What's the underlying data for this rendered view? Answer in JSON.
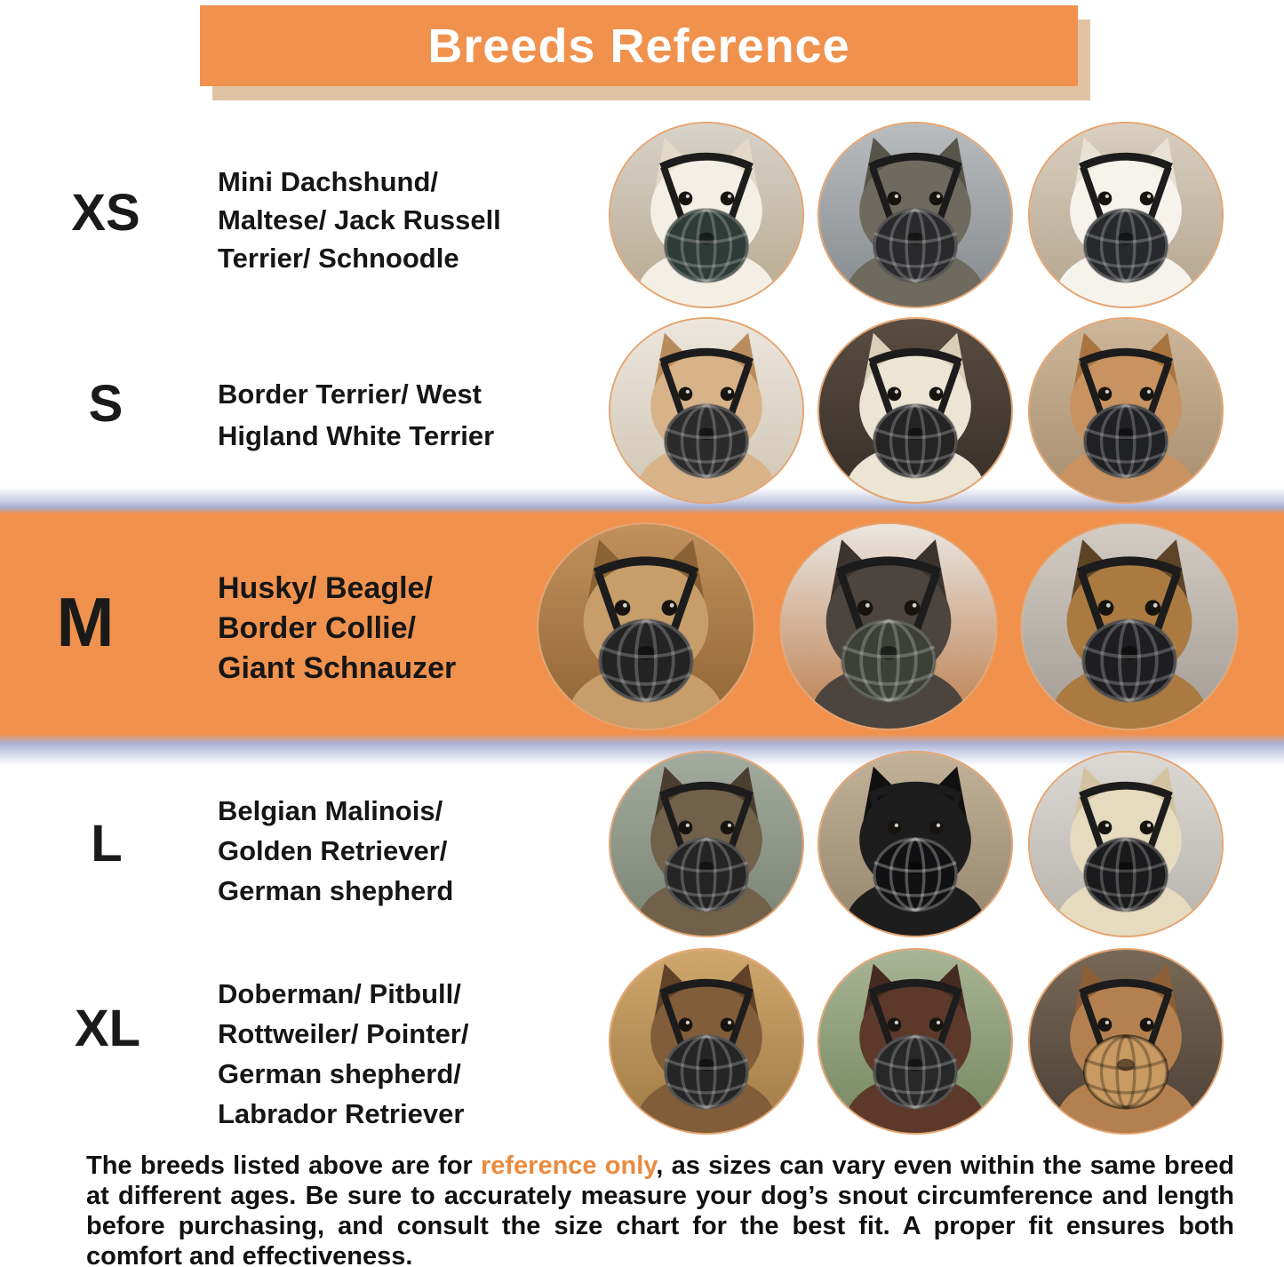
{
  "title": {
    "text": "Breeds Reference",
    "banner_color": "#f0924e",
    "shadow_color": "#dfc3a3",
    "text_color": "#ffffff"
  },
  "highlight": {
    "band_color": "#f0924e",
    "edge_color": "#a9afd2",
    "highlighted_size": "M"
  },
  "photo_ring_color": "#e5a470",
  "rows": [
    {
      "size": "XS",
      "breeds_lines": [
        "Mini Dachshund/",
        "Maltese/ Jack Russell",
        "Terrier/ Schnoodle"
      ],
      "highlighted": false,
      "photos": [
        {
          "desc": "white puppy wearing black basket muzzle",
          "bg": "#d7d3c9",
          "bg2": "#b8a88e",
          "fur": "#f4efe4",
          "fur2": "#e3d9c6",
          "muzzle": "#2e3c37",
          "lattice": "rgba(255,255,255,.22)"
        },
        {
          "desc": "grey scruffy terrier wearing basket muzzle",
          "bg": "#b9bcbf",
          "bg2": "#84898c",
          "fur": "#6e6a5e",
          "fur2": "#57544a",
          "muzzle": "#2a2a2c",
          "lattice": "rgba(255,255,255,.22)"
        },
        {
          "desc": "white fluffy dog wearing black basket muzzle",
          "bg": "#d9cfc0",
          "bg2": "#b3a38c",
          "fur": "#f6f3ec",
          "fur2": "#e8e2d4",
          "muzzle": "#27292c",
          "lattice": "rgba(255,255,255,.22)"
        }
      ]
    },
    {
      "size": "S",
      "breeds_lines": [
        "Border Terrier/ West",
        "Higland White Terrier"
      ],
      "highlighted": false,
      "photos": [
        {
          "desc": "tan and white terrier wearing black basket muzzle",
          "bg": "#ece6dd",
          "bg2": "#cfc5b2",
          "fur": "#d8b289",
          "fur2": "#b98c5e",
          "muzzle": "#2b2b2b",
          "lattice": "rgba(255,255,255,.22)"
        },
        {
          "desc": "white dog wearing black basket muzzle on dark wood floor",
          "bg": "#5a4d41",
          "bg2": "#352e28",
          "fur": "#ece5d3",
          "fur2": "#d9cfb8",
          "muzzle": "#242424",
          "lattice": "rgba(255,255,255,.22)"
        },
        {
          "desc": "fawn dog wearing black basket muzzle",
          "bg": "#cdb699",
          "bg2": "#a68d6e",
          "fur": "#c89261",
          "fur2": "#a9743f",
          "muzzle": "#202124",
          "lattice": "rgba(255,255,255,.22)"
        }
      ]
    },
    {
      "size": "M",
      "breeds_lines": [
        "Husky/ Beagle/",
        "Border Collie/",
        "Giant Schnauzer"
      ],
      "highlighted": true,
      "photos": [
        {
          "desc": "tan shepherd in profile wearing black basket muzzle",
          "bg": "#c1915c",
          "bg2": "#8f6433",
          "fur": "#c79d6a",
          "fur2": "#8a6234",
          "muzzle": "#232323",
          "lattice": "rgba(255,255,255,.22)"
        },
        {
          "desc": "dark curly-coated dog with red collar wearing basket muzzle",
          "bg": "#eae6e1",
          "bg2": "#bb7c4c",
          "fur": "#4c443e",
          "fur2": "#3a332e",
          "muzzle": "#3c4036",
          "lattice": "rgba(255,255,255,.22)"
        },
        {
          "desc": "brown and black dog wearing black basket muzzle on gravel",
          "bg": "#d2ccc5",
          "bg2": "#a29b93",
          "fur": "#aa7a40",
          "fur2": "#5d4426",
          "muzzle": "#1e1e20",
          "lattice": "rgba(255,255,255,.22)"
        }
      ]
    },
    {
      "size": "L",
      "breeds_lines": [
        "Belgian Malinois/",
        "Golden Retriever/",
        "German shepherd"
      ],
      "highlighted": false,
      "photos": [
        {
          "desc": "sable german shepherd wearing black basket muzzle",
          "bg": "#a3ab9e",
          "bg2": "#7a8372",
          "fur": "#71604a",
          "fur2": "#4a3e2e",
          "muzzle": "#242424",
          "lattice": "rgba(255,255,255,.22)"
        },
        {
          "desc": "black labrador wearing black basket muzzle",
          "bg": "#c3b299",
          "bg2": "#93846c",
          "fur": "#1d1d1d",
          "fur2": "#101010",
          "muzzle": "#111113",
          "lattice": "rgba(255,255,255,.28)"
        },
        {
          "desc": "cream shepherd wearing black basket muzzle",
          "bg": "#dcd9d4",
          "bg2": "#b5b2ac",
          "fur": "#e6dabf",
          "fur2": "#d3c3a0",
          "muzzle": "#1a1a1c",
          "lattice": "rgba(255,255,255,.22)"
        }
      ]
    },
    {
      "size": "XL",
      "breeds_lines": [
        "Doberman/ Pitbull/",
        "Rottweiler/ Pointer/",
        "German shepherd/",
        "Labrador Retriever"
      ],
      "highlighted": false,
      "photos": [
        {
          "desc": "brindle dog in profile wearing black basket muzzle",
          "bg": "#cfa76e",
          "bg2": "#a07a44",
          "fur": "#815d3a",
          "fur2": "#5f4227",
          "muzzle": "#252525",
          "lattice": "rgba(255,255,255,.22)"
        },
        {
          "desc": "doberman wearing black basket muzzle outdoors",
          "bg": "#a8b596",
          "bg2": "#75865f",
          "fur": "#5d392b",
          "fur2": "#442a20",
          "muzzle": "#272727",
          "lattice": "rgba(255,255,255,.22)"
        },
        {
          "desc": "pitbull wearing tan basket muzzle",
          "bg": "#786857",
          "bg2": "#4b3f34",
          "fur": "#b5804f",
          "fur2": "#8e5f36",
          "muzzle": "#c99a62",
          "lattice": "rgba(0,0,0,.28)"
        }
      ]
    }
  ],
  "footer": {
    "before": "The breeds listed above are for ",
    "highlight": "reference only",
    "after": ", as sizes can vary even within the same breed at different ages. Be sure to accurately measure your dog’s snout circumference and length before purchasing, and consult the size chart for the best fit. A proper fit ensures both comfort and effectiveness.",
    "highlight_color": "#eb8a3e"
  }
}
